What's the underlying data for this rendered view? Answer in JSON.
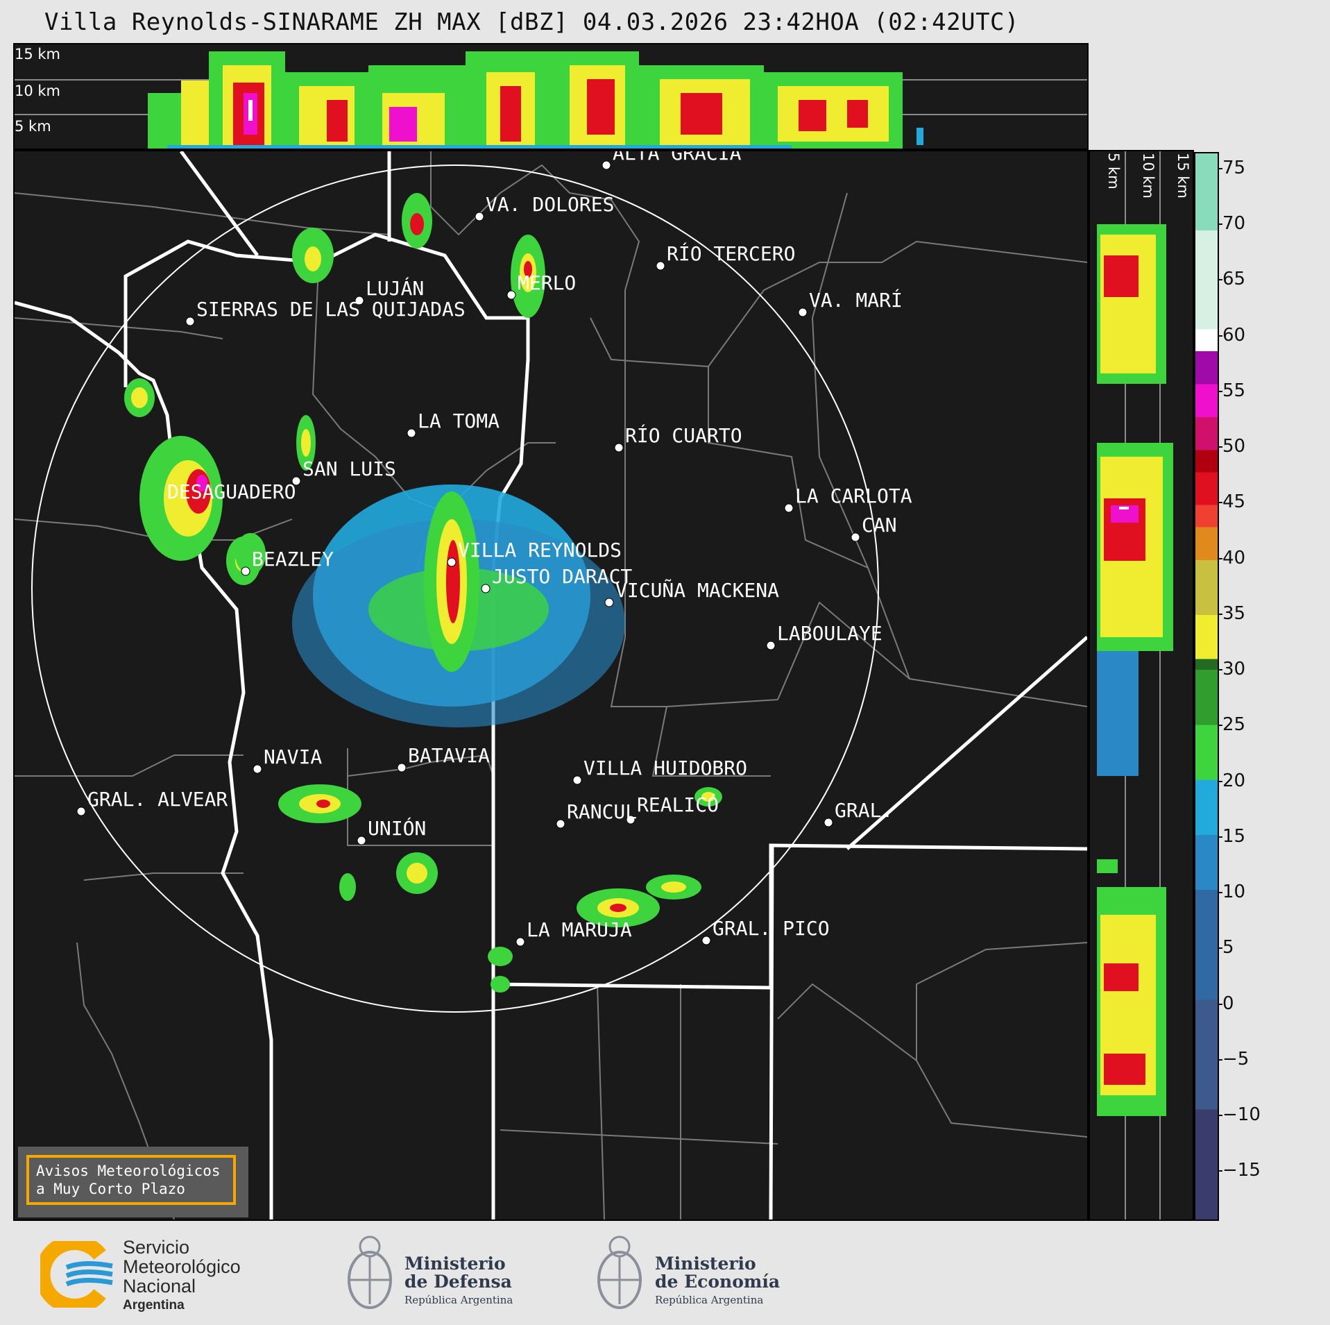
{
  "title": "Villa Reynolds-SINARAME ZH MAX [dBZ] 04.03.2026 23:42HOA (02:42UTC)",
  "top_panel": {
    "levels": [
      "15 km",
      "10 km",
      "5 km"
    ]
  },
  "side_panel": {
    "levels": [
      "5 km",
      "10 km",
      "15 km"
    ]
  },
  "colorbar": {
    "ticks": [
      "75",
      "70",
      "65",
      "60",
      "55",
      "50",
      "45",
      "40",
      "35",
      "30",
      "25",
      "20",
      "15",
      "10",
      "5",
      "0",
      "−5",
      "−10",
      "−15"
    ],
    "min": -20,
    "max": 77,
    "units": "dBZ",
    "colors": {
      "-20": "#3a3d6b",
      "-10": "#3d5a8c",
      "0": "#2f6aa4",
      "10": "#2a88c6",
      "15": "#22aadd",
      "20": "#3ed43e",
      "25": "#2f9e2f",
      "30": "#236b23",
      "31": "#f0ec30",
      "35": "#c8c040",
      "40": "#e08a1e",
      "43": "#f04030",
      "45": "#e01020",
      "48": "#b00010",
      "50": "#d0106a",
      "53": "#ee10cc",
      "56": "#a00aa8",
      "59": "#ffffff",
      "61": "#d6f0e4",
      "70": "#88dcbc"
    }
  },
  "cities": [
    {
      "name": "ALTA GRACIA"
    },
    {
      "name": "VA. DOLORES"
    },
    {
      "name": "RÍO TERCERO"
    },
    {
      "name": "LUJÁN"
    },
    {
      "name": "MERLO"
    },
    {
      "name": "SIERRAS DE LAS QUIJADAS"
    },
    {
      "name": "VA. MARÍ"
    },
    {
      "name": "LA TOMA"
    },
    {
      "name": "RÍO CUARTO"
    },
    {
      "name": "SAN LUIS"
    },
    {
      "name": "DESAGUADERO"
    },
    {
      "name": "LA CARLOTA"
    },
    {
      "name": "CAN"
    },
    {
      "name": "VILLA REYNOLDS"
    },
    {
      "name": "BEAZLEY"
    },
    {
      "name": "JUSTO DARACT"
    },
    {
      "name": "VICUÑA MACKENA"
    },
    {
      "name": "LABOULAYE"
    },
    {
      "name": "NAVIA"
    },
    {
      "name": "BATAVIA"
    },
    {
      "name": "VILLA HUIDOBRO"
    },
    {
      "name": "GRAL. ALVEAR"
    },
    {
      "name": "RANCUL"
    },
    {
      "name": "REALICÓ"
    },
    {
      "name": "GRAL."
    },
    {
      "name": "UNIÓN"
    },
    {
      "name": "LA MARUJA"
    },
    {
      "name": "GRAL. PICO"
    }
  ],
  "alert": {
    "line1": "Avisos Meteorológicos",
    "line2": "a Muy Corto Plazo"
  },
  "logos": {
    "smn": {
      "line1": "Servicio",
      "line2": "Meteorológico",
      "line3": "Nacional",
      "line4": "Argentina"
    },
    "defensa": {
      "line1": "Ministerio",
      "line2": "de Defensa",
      "line3": "República Argentina"
    },
    "economia": {
      "line1": "Ministerio",
      "line2": "de Economía",
      "line3": "República Argentina"
    }
  }
}
